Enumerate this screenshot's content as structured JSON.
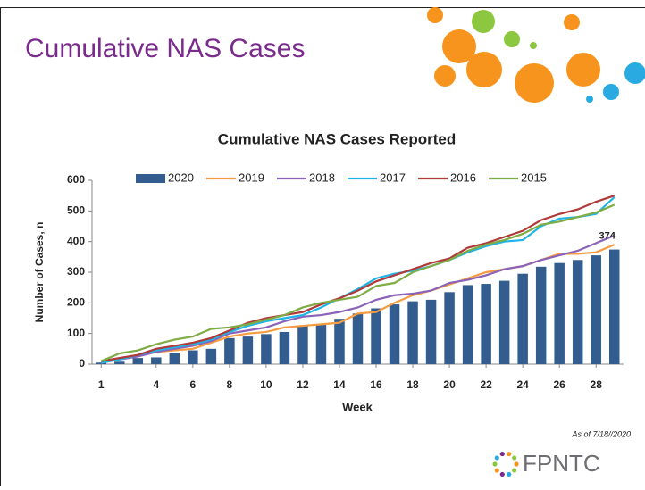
{
  "slide_title": "Cumulative NAS Cases",
  "note": "As of 7/18//2020",
  "logo": "FPNTC",
  "chart_data": {
    "type": "bar",
    "title": "Cumulative NAS Cases Reported",
    "x_label": "Week",
    "y_label": "Number of Cases, n",
    "x": [
      1,
      2,
      3,
      4,
      5,
      6,
      7,
      8,
      9,
      10,
      11,
      12,
      13,
      14,
      15,
      16,
      17,
      18,
      19,
      20,
      21,
      22,
      23,
      24,
      25,
      26,
      27,
      28,
      29
    ],
    "xlim": [
      0.5,
      29.5
    ],
    "xticks": [
      1,
      4,
      6,
      8,
      10,
      12,
      14,
      16,
      18,
      20,
      22,
      24,
      26,
      28
    ],
    "ylim": [
      0,
      600
    ],
    "yticks": [
      0,
      100,
      200,
      300,
      400,
      500,
      600
    ],
    "grid": false,
    "series": [
      {
        "name": "2020",
        "type": "bar",
        "color": "#335d8e",
        "values": [
          5,
          8,
          20,
          22,
          35,
          45,
          50,
          85,
          90,
          98,
          105,
          125,
          130,
          148,
          165,
          182,
          195,
          205,
          210,
          235,
          258,
          262,
          272,
          295,
          318,
          330,
          340,
          355,
          374
        ]
      },
      {
        "name": "2019",
        "type": "line",
        "color": "#f59b42",
        "values": [
          5,
          15,
          30,
          40,
          45,
          50,
          70,
          90,
          100,
          105,
          120,
          125,
          130,
          135,
          165,
          170,
          200,
          225,
          240,
          260,
          280,
          300,
          310,
          320,
          340,
          360,
          360,
          365,
          390
        ]
      },
      {
        "name": "2018",
        "type": "line",
        "color": "#8a63b8",
        "values": [
          5,
          15,
          25,
          40,
          50,
          60,
          75,
          100,
          110,
          120,
          140,
          155,
          160,
          170,
          185,
          210,
          225,
          230,
          240,
          265,
          275,
          290,
          310,
          320,
          340,
          355,
          370,
          395,
          420
        ]
      },
      {
        "name": "2017",
        "type": "line",
        "color": "#1fb4e6",
        "values": [
          5,
          15,
          30,
          45,
          55,
          65,
          80,
          105,
          125,
          140,
          150,
          160,
          185,
          215,
          245,
          280,
          295,
          305,
          320,
          340,
          365,
          385,
          400,
          405,
          450,
          475,
          480,
          490,
          545
        ]
      },
      {
        "name": "2016",
        "type": "line",
        "color": "#b03a3a",
        "values": [
          10,
          20,
          30,
          50,
          60,
          70,
          85,
          110,
          135,
          150,
          160,
          170,
          195,
          215,
          240,
          270,
          290,
          310,
          330,
          345,
          380,
          395,
          415,
          435,
          470,
          490,
          505,
          530,
          550
        ]
      },
      {
        "name": "2015",
        "type": "line",
        "color": "#7fac45",
        "values": [
          10,
          35,
          45,
          65,
          80,
          90,
          115,
          120,
          130,
          145,
          160,
          185,
          200,
          210,
          220,
          255,
          265,
          300,
          320,
          340,
          370,
          390,
          405,
          425,
          455,
          465,
          480,
          495,
          520
        ]
      }
    ]
  }
}
